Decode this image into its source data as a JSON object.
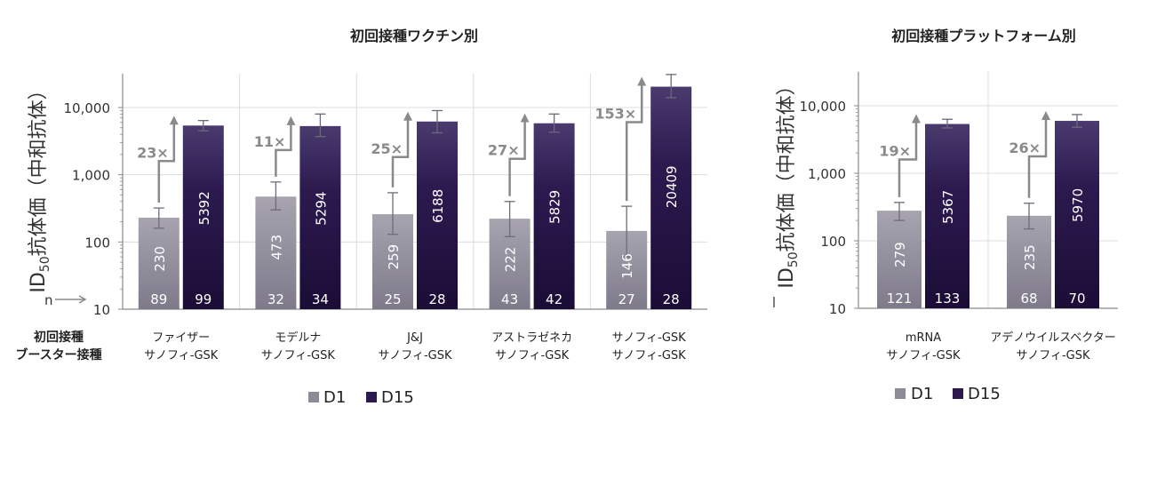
{
  "colors": {
    "d1": "#8e8b99",
    "d15": "#2c1a4f",
    "d15_dark": "#1b0c36",
    "grid": "#dcdcdc",
    "axis": "#8a8a8a",
    "arrow": "#8a8a8a",
    "fold": "#8a8a8a",
    "text": "#222222"
  },
  "chart_data": [
    {
      "type": "bar",
      "title": "初回接種ワクチン別",
      "ylabel": "ID50抗体価（中和抗体）",
      "ylabel_main": "ID",
      "ylabel_sub": "50",
      "ylabel_rest": "抗体価（中和抗体）",
      "yscale": "log",
      "ylim": [
        10,
        30000
      ],
      "yticks": [
        "10",
        "100",
        "1,000",
        "10,000"
      ],
      "ytick_values": [
        10,
        100,
        1000,
        10000
      ],
      "categories": [
        "ファイザー\nサノフィ-GSK",
        "モデルナ\nサノフィ-GSK",
        "J&J\nサノフィ-GSK",
        "アストラゼネカ\nサノフィ-GSK",
        "サノフィ-GSK\nサノフィ-GSK"
      ],
      "series": [
        {
          "name": "D1",
          "values": [
            230,
            473,
            259,
            222,
            146
          ],
          "err_low": [
            160,
            300,
            130,
            120,
            60
          ],
          "err_high": [
            320,
            780,
            540,
            400,
            340
          ],
          "n": [
            89,
            32,
            25,
            43,
            27
          ]
        },
        {
          "name": "D15",
          "values": [
            5392,
            5294,
            6188,
            5829,
            20409
          ],
          "err_low": [
            4500,
            3700,
            4200,
            4300,
            14000
          ],
          "err_high": [
            6400,
            8000,
            9000,
            8000,
            31000
          ],
          "n": [
            99,
            34,
            28,
            42,
            28
          ]
        }
      ],
      "folds": [
        "23×",
        "11×",
        "25×",
        "27×",
        "153×"
      ],
      "n_label": "n",
      "row_label": [
        "初回接種",
        "ブースター接種"
      ],
      "legend": [
        "D1",
        "D15"
      ]
    },
    {
      "type": "bar",
      "title": "初回接種プラットフォーム別",
      "ylabel": "ID50抗体価（中和抗体）",
      "ylabel_main": "ID",
      "ylabel_sub": "50",
      "ylabel_rest": "抗体価（中和抗体）",
      "yscale": "log",
      "ylim": [
        10,
        30000
      ],
      "yticks": [
        "10",
        "100",
        "1,000",
        "10,000"
      ],
      "ytick_values": [
        10,
        100,
        1000,
        10000
      ],
      "categories": [
        "mRNA\nサノフィ-GSK",
        "アデノウイルスベクター\nサノフィ-GSK"
      ],
      "series": [
        {
          "name": "D1",
          "values": [
            279,
            235
          ],
          "err_low": [
            200,
            150
          ],
          "err_high": [
            370,
            360
          ],
          "n": [
            121,
            68
          ]
        },
        {
          "name": "D15",
          "values": [
            5367,
            5970
          ],
          "err_low": [
            4700,
            4800
          ],
          "err_high": [
            6300,
            7400
          ],
          "n": [
            133,
            70
          ]
        }
      ],
      "folds": [
        "19×",
        "26×"
      ],
      "legend": [
        "D1",
        "D15"
      ]
    }
  ]
}
